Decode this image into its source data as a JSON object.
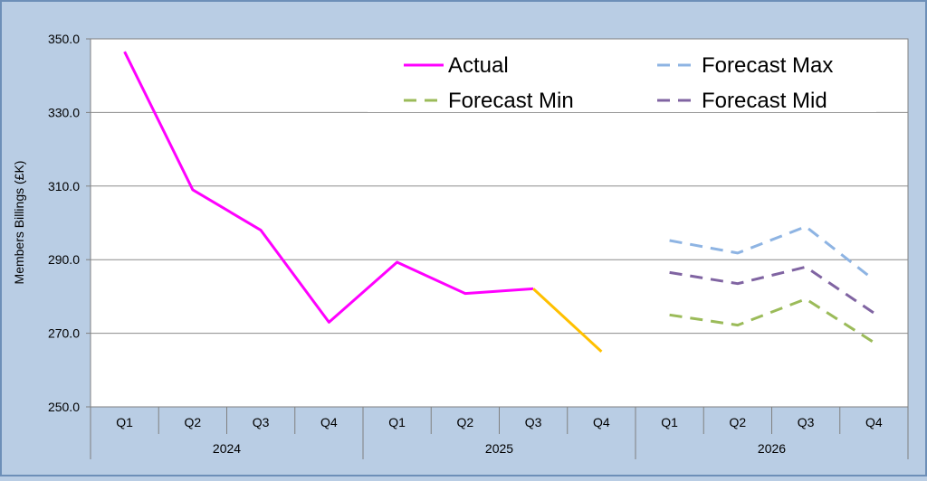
{
  "chart_data": {
    "type": "line",
    "title": "",
    "xlabel": "",
    "ylabel": "Members Billings (£K)",
    "ylim": [
      250,
      350
    ],
    "yticks": [
      "250.0",
      "270.0",
      "290.0",
      "310.0",
      "330.0",
      "350.0"
    ],
    "grid": true,
    "legend_position": "top-right",
    "categories": [
      "Q1",
      "Q2",
      "Q3",
      "Q4",
      "Q1",
      "Q2",
      "Q3",
      "Q4",
      "Q1",
      "Q2",
      "Q3",
      "Q4"
    ],
    "groups": [
      {
        "label": "2024",
        "span": 4
      },
      {
        "label": "2025",
        "span": 4
      },
      {
        "label": "2026",
        "span": 4
      }
    ],
    "series": [
      {
        "name": "Actual",
        "color": "#ff00ff",
        "dash": "solid",
        "values": [
          346.5,
          309.0,
          298.0,
          273.0,
          289.3,
          280.8,
          282.1,
          null,
          null,
          null,
          null,
          null
        ]
      },
      {
        "name": "",
        "color": "#ffc000",
        "dash": "solid",
        "values": [
          null,
          null,
          null,
          null,
          null,
          null,
          282.1,
          265.0,
          null,
          null,
          null,
          null
        ]
      },
      {
        "name": "Forecast Max",
        "color": "#8eb4e3",
        "dash": "dashed",
        "values": [
          null,
          null,
          null,
          null,
          null,
          null,
          null,
          null,
          295.2,
          291.8,
          299.0,
          284.5
        ]
      },
      {
        "name": "Forecast Min",
        "color": "#9bbb59",
        "dash": "dashed",
        "values": [
          null,
          null,
          null,
          null,
          null,
          null,
          null,
          null,
          275.0,
          272.2,
          279.3,
          267.5
        ]
      },
      {
        "name": "Forecast Mid",
        "color": "#8064a2",
        "dash": "dashed",
        "values": [
          null,
          null,
          null,
          null,
          null,
          null,
          null,
          null,
          286.5,
          283.5,
          288.0,
          275.5
        ]
      }
    ]
  }
}
